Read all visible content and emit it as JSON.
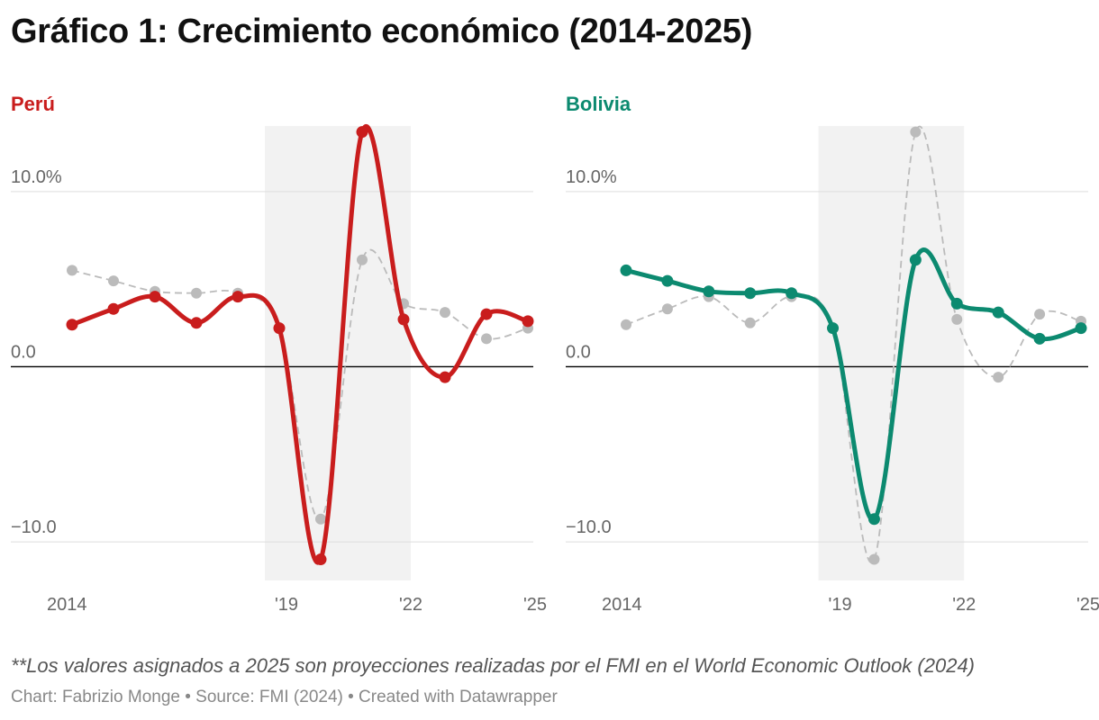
{
  "title": "Gráfico 1: Crecimiento económico (2014-2025)",
  "note": "**Los valores asignados a 2025 son proyecciones realizadas por el FMI en el World Economic Outlook (2024)",
  "credit": "Chart: Fabrizio Monge • Source: FMI (2024) • Created with Datawrapper",
  "chart_data": [
    {
      "type": "line",
      "title": "Perú",
      "color": "#c91d1d",
      "comparison_color": "#bbbbbb",
      "x": [
        2014,
        2015,
        2016,
        2017,
        2018,
        2019,
        2020,
        2021,
        2022,
        2023,
        2024,
        2025
      ],
      "series": [
        {
          "name": "Perú",
          "values": [
            2.4,
            3.3,
            4.0,
            2.5,
            4.0,
            2.2,
            -11.0,
            13.4,
            2.7,
            -0.6,
            3.0,
            2.6
          ]
        },
        {
          "values": [
            5.5,
            4.9,
            4.3,
            4.2,
            4.2,
            2.2,
            -8.7,
            6.1,
            3.6,
            3.1,
            1.6,
            2.2
          ]
        }
      ],
      "y_ticks": [
        10,
        0,
        -10
      ],
      "y_tick_labels": [
        "10.0%",
        "0.0",
        "−10.0"
      ],
      "x_tick_labels": [
        {
          "x": 2014,
          "label": "2014"
        },
        {
          "x": 2019,
          "label": "'19"
        },
        {
          "x": 2022,
          "label": "'22"
        },
        {
          "x": 2025,
          "label": "'25"
        }
      ],
      "ylim": [
        -12,
        14
      ],
      "shaded_range": [
        2019,
        2022
      ]
    },
    {
      "type": "line",
      "title": "Bolivia",
      "color": "#0c8a70",
      "comparison_color": "#bbbbbb",
      "x": [
        2014,
        2015,
        2016,
        2017,
        2018,
        2019,
        2020,
        2021,
        2022,
        2023,
        2024,
        2025
      ],
      "series": [
        {
          "name": "Bolivia",
          "values": [
            5.5,
            4.9,
            4.3,
            4.2,
            4.2,
            2.2,
            -8.7,
            6.1,
            3.6,
            3.1,
            1.6,
            2.2
          ]
        },
        {
          "values": [
            2.4,
            3.3,
            4.0,
            2.5,
            4.0,
            2.2,
            -11.0,
            13.4,
            2.7,
            -0.6,
            3.0,
            2.6
          ]
        }
      ],
      "y_ticks": [
        10,
        0,
        -10
      ],
      "y_tick_labels": [
        "10.0%",
        "0.0",
        "−10.0"
      ],
      "x_tick_labels": [
        {
          "x": 2014,
          "label": "2014"
        },
        {
          "x": 2019,
          "label": "'19"
        },
        {
          "x": 2022,
          "label": "'22"
        },
        {
          "x": 2025,
          "label": "'25"
        }
      ],
      "ylim": [
        -12,
        14
      ],
      "shaded_range": [
        2019,
        2022
      ]
    }
  ]
}
